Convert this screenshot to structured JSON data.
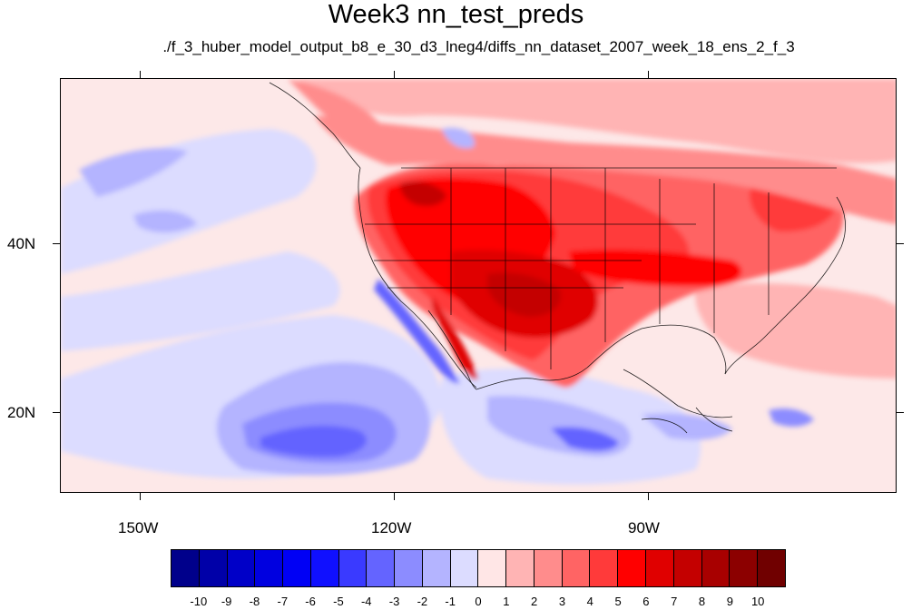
{
  "title": "Week3 nn_test_preds",
  "subtitle": "./f_3_huber_model_output_b8_e_30_d3_lneg4/diffs_nn_dataset_2007_week_18_ens_2_f_3",
  "axes": {
    "x_labels": [
      "150W",
      "120W",
      "90W"
    ],
    "y_labels": [
      "40N",
      "20N"
    ]
  },
  "colorbar": {
    "labels": [
      "-10",
      "-9",
      "-8",
      "-7",
      "-6",
      "-5",
      "-4",
      "-3",
      "-2",
      "-1",
      "0",
      "1",
      "2",
      "3",
      "4",
      "5",
      "6",
      "7",
      "8",
      "9",
      "10"
    ],
    "colors": [
      "#00008b",
      "#0000a8",
      "#0000c8",
      "#0000e0",
      "#0000f5",
      "#1010ff",
      "#3a3aff",
      "#6464ff",
      "#8c8cff",
      "#b4b4ff",
      "#dcdcff",
      "#ffe6e6",
      "#ffb4b4",
      "#ff8c8c",
      "#ff6464",
      "#ff3a3a",
      "#ff0000",
      "#e00000",
      "#c40000",
      "#a80000",
      "#8c0000",
      "#700000"
    ]
  }
}
